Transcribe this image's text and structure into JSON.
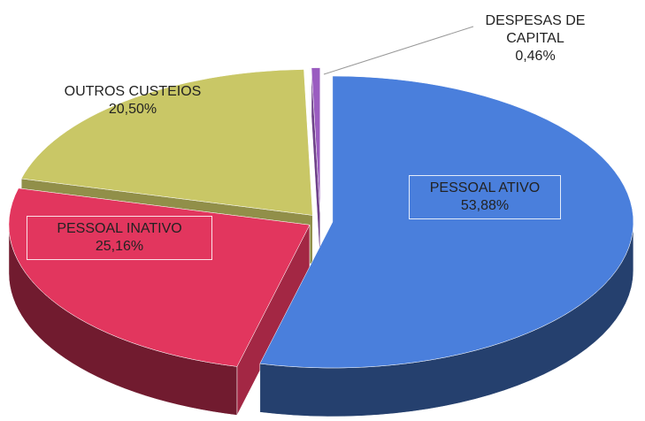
{
  "chart_data": {
    "type": "pie3d",
    "categories": [
      "PESSOAL ATIVO",
      "PESSOAL INATIVO",
      "OUTROS CUSTEIOS",
      "DESPESAS DE CAPITAL"
    ],
    "values": [
      53.88,
      25.16,
      20.5,
      0.46
    ],
    "value_labels": [
      "53,88%",
      "25,16%",
      "20,50%",
      "0,46%"
    ],
    "colors": [
      "#4a7fdc",
      "#e2365e",
      "#c9c766",
      "#9a5cc0"
    ]
  }
}
